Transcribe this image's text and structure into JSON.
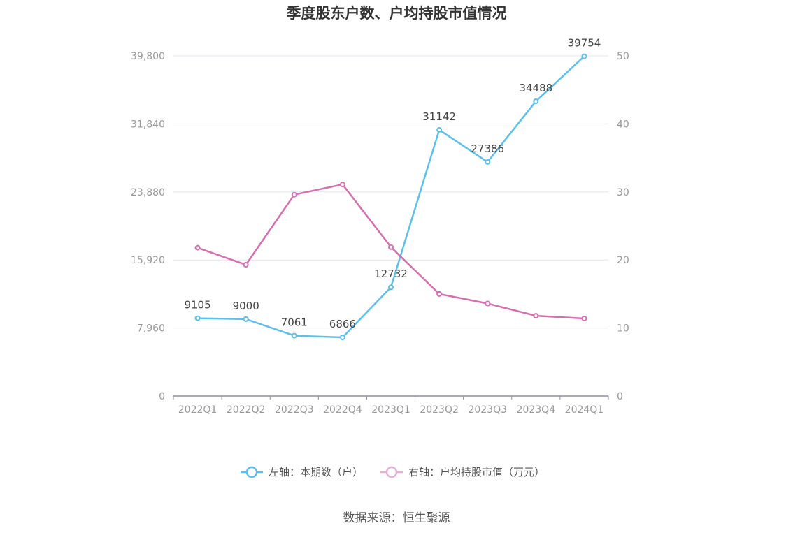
{
  "chart_data": {
    "type": "line",
    "title": "季度股东户数、户均持股市值情况",
    "categories": [
      "2022Q1",
      "2022Q2",
      "2022Q3",
      "2022Q4",
      "2023Q1",
      "2023Q2",
      "2023Q3",
      "2023Q4",
      "2024Q1"
    ],
    "left_axis": {
      "ticks": [
        "0",
        "7,960",
        "15,920",
        "23,880",
        "31,840",
        "39,800"
      ],
      "ylim": [
        0,
        39800
      ]
    },
    "right_axis": {
      "ticks": [
        "0",
        "10",
        "20",
        "30",
        "40",
        "50"
      ],
      "ylim": [
        0,
        50
      ]
    },
    "grid": true,
    "legend_placement": "bottom",
    "series": [
      {
        "name": "左轴：本期数（户）",
        "axis": "left",
        "color": "#5bc0eb",
        "values": [
          9105,
          9000,
          7061,
          6866,
          12732,
          31142,
          27386,
          34488,
          39754
        ],
        "labels": [
          "9105",
          "9000",
          "7061",
          "6866",
          "12732",
          "31142",
          "27386",
          "34488",
          "39754"
        ]
      },
      {
        "name": "右轴：户均持股市值（万元）",
        "axis": "right",
        "color": "#d66eb0",
        "values": [
          21.8,
          19.3,
          29.6,
          31.1,
          21.9,
          15.0,
          13.6,
          11.8,
          11.4
        ]
      }
    ]
  },
  "source": "数据来源：恒生聚源"
}
